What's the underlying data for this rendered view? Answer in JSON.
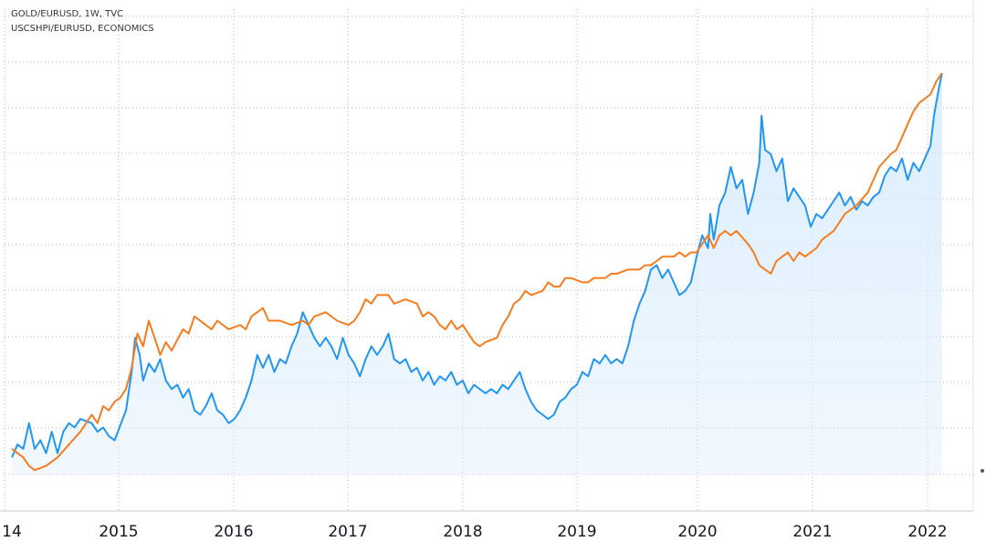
{
  "legend": {
    "line1": "GOLD/EURUSD, 1W, TVC",
    "line2": "USCSHPI/EURUSD, ECONOMICS"
  },
  "chart_data": {
    "type": "line",
    "x_ticks": [
      "14",
      "2015",
      "2016",
      "2017",
      "2018",
      "2019",
      "2020",
      "2021",
      "2022"
    ],
    "xlim": [
      2014.0,
      2022.5
    ],
    "y_axis_labels_visible": false,
    "grid": true,
    "series": [
      {
        "name": "GOLD/EURUSD, 1W, TVC",
        "color": "#f57c1f",
        "fill": false,
        "points": [
          [
            2014.0,
            0.06
          ],
          [
            2014.1,
            0.04
          ],
          [
            2014.15,
            0.02
          ],
          [
            2014.2,
            0.01
          ],
          [
            2014.3,
            0.02
          ],
          [
            2014.4,
            0.04
          ],
          [
            2014.5,
            0.07
          ],
          [
            2014.6,
            0.1
          ],
          [
            2014.7,
            0.14
          ],
          [
            2014.75,
            0.12
          ],
          [
            2014.8,
            0.16
          ],
          [
            2014.85,
            0.15
          ],
          [
            2014.9,
            0.17
          ],
          [
            2014.95,
            0.18
          ],
          [
            2015.0,
            0.2
          ],
          [
            2015.05,
            0.25
          ],
          [
            2015.1,
            0.33
          ],
          [
            2015.15,
            0.3
          ],
          [
            2015.2,
            0.36
          ],
          [
            2015.25,
            0.32
          ],
          [
            2015.3,
            0.28
          ],
          [
            2015.35,
            0.31
          ],
          [
            2015.4,
            0.29
          ],
          [
            2015.5,
            0.34
          ],
          [
            2015.55,
            0.33
          ],
          [
            2015.6,
            0.37
          ],
          [
            2015.7,
            0.35
          ],
          [
            2015.75,
            0.34
          ],
          [
            2015.8,
            0.36
          ],
          [
            2015.9,
            0.34
          ],
          [
            2016.0,
            0.35
          ],
          [
            2016.05,
            0.34
          ],
          [
            2016.1,
            0.37
          ],
          [
            2016.2,
            0.39
          ],
          [
            2016.25,
            0.36
          ],
          [
            2016.35,
            0.36
          ],
          [
            2016.45,
            0.35
          ],
          [
            2016.55,
            0.36
          ],
          [
            2016.6,
            0.35
          ],
          [
            2016.65,
            0.37
          ],
          [
            2016.75,
            0.38
          ],
          [
            2016.85,
            0.36
          ],
          [
            2016.95,
            0.35
          ],
          [
            2017.0,
            0.36
          ],
          [
            2017.05,
            0.38
          ],
          [
            2017.1,
            0.41
          ],
          [
            2017.15,
            0.4
          ],
          [
            2017.2,
            0.42
          ],
          [
            2017.3,
            0.42
          ],
          [
            2017.35,
            0.4
          ],
          [
            2017.45,
            0.41
          ],
          [
            2017.55,
            0.4
          ],
          [
            2017.6,
            0.37
          ],
          [
            2017.65,
            0.38
          ],
          [
            2017.7,
            0.37
          ],
          [
            2017.75,
            0.35
          ],
          [
            2017.8,
            0.34
          ],
          [
            2017.85,
            0.36
          ],
          [
            2017.9,
            0.34
          ],
          [
            2017.95,
            0.35
          ],
          [
            2018.0,
            0.33
          ],
          [
            2018.05,
            0.31
          ],
          [
            2018.1,
            0.3
          ],
          [
            2018.15,
            0.31
          ],
          [
            2018.25,
            0.32
          ],
          [
            2018.3,
            0.35
          ],
          [
            2018.35,
            0.37
          ],
          [
            2018.4,
            0.4
          ],
          [
            2018.45,
            0.41
          ],
          [
            2018.5,
            0.43
          ],
          [
            2018.55,
            0.42
          ],
          [
            2018.65,
            0.43
          ],
          [
            2018.7,
            0.45
          ],
          [
            2018.75,
            0.44
          ],
          [
            2018.8,
            0.44
          ],
          [
            2018.85,
            0.46
          ],
          [
            2018.9,
            0.46
          ],
          [
            2019.0,
            0.45
          ],
          [
            2019.05,
            0.45
          ],
          [
            2019.1,
            0.46
          ],
          [
            2019.2,
            0.46
          ],
          [
            2019.25,
            0.47
          ],
          [
            2019.3,
            0.47
          ],
          [
            2019.4,
            0.48
          ],
          [
            2019.5,
            0.48
          ],
          [
            2019.55,
            0.49
          ],
          [
            2019.6,
            0.49
          ],
          [
            2019.65,
            0.5
          ],
          [
            2019.7,
            0.51
          ],
          [
            2019.8,
            0.51
          ],
          [
            2019.85,
            0.52
          ],
          [
            2019.9,
            0.51
          ],
          [
            2019.95,
            0.52
          ],
          [
            2020.0,
            0.52
          ],
          [
            2020.05,
            0.54
          ],
          [
            2020.1,
            0.56
          ],
          [
            2020.15,
            0.53
          ],
          [
            2020.2,
            0.56
          ],
          [
            2020.25,
            0.57
          ],
          [
            2020.3,
            0.56
          ],
          [
            2020.35,
            0.57
          ],
          [
            2020.45,
            0.54
          ],
          [
            2020.5,
            0.52
          ],
          [
            2020.55,
            0.49
          ],
          [
            2020.6,
            0.48
          ],
          [
            2020.65,
            0.47
          ],
          [
            2020.7,
            0.5
          ],
          [
            2020.75,
            0.51
          ],
          [
            2020.8,
            0.52
          ],
          [
            2020.85,
            0.5
          ],
          [
            2020.9,
            0.52
          ],
          [
            2020.95,
            0.51
          ],
          [
            2021.0,
            0.52
          ],
          [
            2021.05,
            0.53
          ],
          [
            2021.1,
            0.55
          ],
          [
            2021.2,
            0.57
          ],
          [
            2021.25,
            0.59
          ],
          [
            2021.3,
            0.61
          ],
          [
            2021.4,
            0.63
          ],
          [
            2021.5,
            0.66
          ],
          [
            2021.55,
            0.69
          ],
          [
            2021.6,
            0.72
          ],
          [
            2021.7,
            0.75
          ],
          [
            2021.75,
            0.76
          ],
          [
            2021.8,
            0.79
          ],
          [
            2021.85,
            0.82
          ],
          [
            2021.9,
            0.85
          ],
          [
            2021.95,
            0.87
          ],
          [
            2022.0,
            0.88
          ],
          [
            2022.05,
            0.89
          ],
          [
            2022.1,
            0.92
          ],
          [
            2022.15,
            0.94
          ]
        ]
      },
      {
        "name": "USCSHPI/EURUSD, ECONOMICS",
        "color": "#2196f3",
        "fill": true,
        "fill_color": "#d9ecfd",
        "points": [
          [
            2014.0,
            0.04
          ],
          [
            2014.05,
            0.07
          ],
          [
            2014.1,
            0.06
          ],
          [
            2014.15,
            0.12
          ],
          [
            2014.2,
            0.06
          ],
          [
            2014.25,
            0.08
          ],
          [
            2014.3,
            0.05
          ],
          [
            2014.35,
            0.1
          ],
          [
            2014.4,
            0.05
          ],
          [
            2014.45,
            0.1
          ],
          [
            2014.5,
            0.12
          ],
          [
            2014.55,
            0.11
          ],
          [
            2014.6,
            0.13
          ],
          [
            2014.7,
            0.12
          ],
          [
            2014.75,
            0.1
          ],
          [
            2014.8,
            0.11
          ],
          [
            2014.85,
            0.09
          ],
          [
            2014.9,
            0.08
          ],
          [
            2015.0,
            0.15
          ],
          [
            2015.05,
            0.24
          ],
          [
            2015.08,
            0.32
          ],
          [
            2015.12,
            0.28
          ],
          [
            2015.15,
            0.22
          ],
          [
            2015.2,
            0.26
          ],
          [
            2015.25,
            0.24
          ],
          [
            2015.3,
            0.27
          ],
          [
            2015.35,
            0.22
          ],
          [
            2015.4,
            0.2
          ],
          [
            2015.45,
            0.21
          ],
          [
            2015.5,
            0.18
          ],
          [
            2015.55,
            0.2
          ],
          [
            2015.6,
            0.15
          ],
          [
            2015.65,
            0.14
          ],
          [
            2015.7,
            0.16
          ],
          [
            2015.75,
            0.19
          ],
          [
            2015.8,
            0.15
          ],
          [
            2015.85,
            0.14
          ],
          [
            2015.9,
            0.12
          ],
          [
            2015.95,
            0.13
          ],
          [
            2016.0,
            0.15
          ],
          [
            2016.05,
            0.18
          ],
          [
            2016.1,
            0.22
          ],
          [
            2016.15,
            0.28
          ],
          [
            2016.2,
            0.25
          ],
          [
            2016.25,
            0.28
          ],
          [
            2016.3,
            0.24
          ],
          [
            2016.35,
            0.27
          ],
          [
            2016.4,
            0.26
          ],
          [
            2016.45,
            0.3
          ],
          [
            2016.5,
            0.33
          ],
          [
            2016.55,
            0.38
          ],
          [
            2016.6,
            0.35
          ],
          [
            2016.65,
            0.32
          ],
          [
            2016.7,
            0.3
          ],
          [
            2016.75,
            0.32
          ],
          [
            2016.8,
            0.3
          ],
          [
            2016.85,
            0.27
          ],
          [
            2016.9,
            0.32
          ],
          [
            2016.95,
            0.28
          ],
          [
            2017.0,
            0.26
          ],
          [
            2017.05,
            0.23
          ],
          [
            2017.1,
            0.27
          ],
          [
            2017.15,
            0.3
          ],
          [
            2017.2,
            0.28
          ],
          [
            2017.25,
            0.3
          ],
          [
            2017.3,
            0.33
          ],
          [
            2017.35,
            0.27
          ],
          [
            2017.4,
            0.26
          ],
          [
            2017.45,
            0.27
          ],
          [
            2017.5,
            0.24
          ],
          [
            2017.55,
            0.25
          ],
          [
            2017.6,
            0.22
          ],
          [
            2017.65,
            0.24
          ],
          [
            2017.7,
            0.21
          ],
          [
            2017.75,
            0.23
          ],
          [
            2017.8,
            0.22
          ],
          [
            2017.85,
            0.24
          ],
          [
            2017.9,
            0.21
          ],
          [
            2017.95,
            0.22
          ],
          [
            2018.0,
            0.19
          ],
          [
            2018.05,
            0.21
          ],
          [
            2018.1,
            0.2
          ],
          [
            2018.15,
            0.19
          ],
          [
            2018.2,
            0.2
          ],
          [
            2018.25,
            0.19
          ],
          [
            2018.3,
            0.21
          ],
          [
            2018.35,
            0.2
          ],
          [
            2018.4,
            0.22
          ],
          [
            2018.45,
            0.24
          ],
          [
            2018.5,
            0.2
          ],
          [
            2018.55,
            0.17
          ],
          [
            2018.6,
            0.15
          ],
          [
            2018.65,
            0.14
          ],
          [
            2018.7,
            0.13
          ],
          [
            2018.75,
            0.14
          ],
          [
            2018.8,
            0.17
          ],
          [
            2018.85,
            0.18
          ],
          [
            2018.9,
            0.2
          ],
          [
            2018.95,
            0.21
          ],
          [
            2019.0,
            0.24
          ],
          [
            2019.05,
            0.23
          ],
          [
            2019.1,
            0.27
          ],
          [
            2019.15,
            0.26
          ],
          [
            2019.2,
            0.28
          ],
          [
            2019.25,
            0.26
          ],
          [
            2019.3,
            0.27
          ],
          [
            2019.35,
            0.26
          ],
          [
            2019.4,
            0.3
          ],
          [
            2019.45,
            0.36
          ],
          [
            2019.5,
            0.4
          ],
          [
            2019.55,
            0.43
          ],
          [
            2019.6,
            0.48
          ],
          [
            2019.65,
            0.49
          ],
          [
            2019.7,
            0.46
          ],
          [
            2019.75,
            0.48
          ],
          [
            2019.8,
            0.45
          ],
          [
            2019.85,
            0.42
          ],
          [
            2019.9,
            0.43
          ],
          [
            2019.95,
            0.45
          ],
          [
            2020.0,
            0.51
          ],
          [
            2020.05,
            0.56
          ],
          [
            2020.1,
            0.53
          ],
          [
            2020.12,
            0.61
          ],
          [
            2020.15,
            0.55
          ],
          [
            2020.2,
            0.63
          ],
          [
            2020.25,
            0.66
          ],
          [
            2020.3,
            0.72
          ],
          [
            2020.35,
            0.67
          ],
          [
            2020.4,
            0.69
          ],
          [
            2020.45,
            0.61
          ],
          [
            2020.5,
            0.66
          ],
          [
            2020.55,
            0.73
          ],
          [
            2020.57,
            0.84
          ],
          [
            2020.6,
            0.76
          ],
          [
            2020.65,
            0.75
          ],
          [
            2020.7,
            0.71
          ],
          [
            2020.75,
            0.74
          ],
          [
            2020.8,
            0.64
          ],
          [
            2020.85,
            0.67
          ],
          [
            2020.9,
            0.65
          ],
          [
            2020.95,
            0.63
          ],
          [
            2021.0,
            0.58
          ],
          [
            2021.05,
            0.61
          ],
          [
            2021.1,
            0.6
          ],
          [
            2021.15,
            0.62
          ],
          [
            2021.2,
            0.64
          ],
          [
            2021.25,
            0.66
          ],
          [
            2021.3,
            0.63
          ],
          [
            2021.35,
            0.65
          ],
          [
            2021.4,
            0.62
          ],
          [
            2021.45,
            0.64
          ],
          [
            2021.5,
            0.63
          ],
          [
            2021.55,
            0.65
          ],
          [
            2021.6,
            0.66
          ],
          [
            2021.65,
            0.7
          ],
          [
            2021.7,
            0.72
          ],
          [
            2021.75,
            0.71
          ],
          [
            2021.8,
            0.74
          ],
          [
            2021.85,
            0.69
          ],
          [
            2021.9,
            0.73
          ],
          [
            2021.95,
            0.71
          ],
          [
            2022.0,
            0.74
          ],
          [
            2022.05,
            0.77
          ],
          [
            2022.08,
            0.84
          ],
          [
            2022.12,
            0.9
          ],
          [
            2022.15,
            0.94
          ]
        ]
      }
    ]
  }
}
